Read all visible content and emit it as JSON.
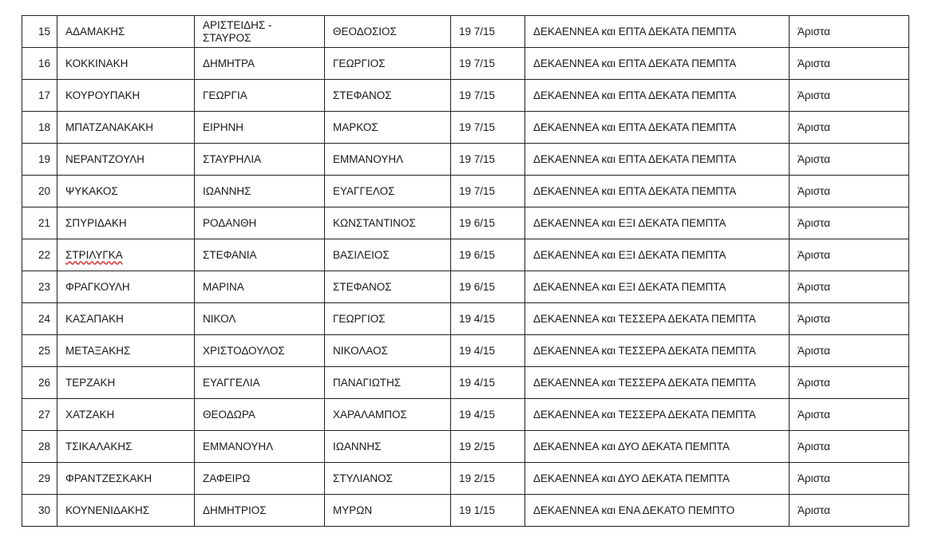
{
  "table": {
    "rows": [
      {
        "no": "15",
        "surname": "ΑΔΑΜΑΚΗΣ",
        "name": "ΑΡΙΣΤΕΙΔΗΣ - ΣΤΑΥΡΟΣ",
        "father": "ΘΕΟΔΟΣΙΟΣ",
        "grade": "19 7/15",
        "grade_words": "ΔΕΚΑΕΝΝΕΑ και ΕΠΤΑ ΔΕΚΑΤΑ ΠΕΜΠΤΑ",
        "mark": "Άριστα"
      },
      {
        "no": "16",
        "surname": "ΚΟΚΚΙΝΑΚΗ",
        "name": "ΔΗΜΗΤΡΑ",
        "father": "ΓΕΩΡΓΙΟΣ",
        "grade": "19 7/15",
        "grade_words": "ΔΕΚΑΕΝΝΕΑ και ΕΠΤΑ ΔΕΚΑΤΑ ΠΕΜΠΤΑ",
        "mark": "Άριστα"
      },
      {
        "no": "17",
        "surname": "ΚΟΥΡΟΥΠΑΚΗ",
        "name": "ΓΕΩΡΓΙΑ",
        "father": "ΣΤΕΦΑΝΟΣ",
        "grade": "19 7/15",
        "grade_words": "ΔΕΚΑΕΝΝΕΑ και ΕΠΤΑ ΔΕΚΑΤΑ ΠΕΜΠΤΑ",
        "mark": "Άριστα"
      },
      {
        "no": "18",
        "surname": "ΜΠΑΤΖΑΝΑΚΑΚΗ",
        "name": "ΕΙΡΗΝΗ",
        "father": "ΜΑΡΚΟΣ",
        "grade": "19 7/15",
        "grade_words": "ΔΕΚΑΕΝΝΕΑ και ΕΠΤΑ ΔΕΚΑΤΑ ΠΕΜΠΤΑ",
        "mark": "Άριστα"
      },
      {
        "no": "19",
        "surname": "ΝΕΡΑΝΤΖΟΥΛΗ",
        "name": "ΣΤΑΥΡΗΛΙΑ",
        "father": "ΕΜΜΑΝΟΥΗΛ",
        "grade": "19 7/15",
        "grade_words": "ΔΕΚΑΕΝΝΕΑ και ΕΠΤΑ ΔΕΚΑΤΑ ΠΕΜΠΤΑ",
        "mark": "Άριστα"
      },
      {
        "no": "20",
        "surname": "ΨΥΚΑΚΟΣ",
        "name": "ΙΩΑΝΝΗΣ",
        "father": "ΕΥΑΓΓΕΛΟΣ",
        "grade": "19 7/15",
        "grade_words": "ΔΕΚΑΕΝΝΕΑ και ΕΠΤΑ ΔΕΚΑΤΑ ΠΕΜΠΤΑ",
        "mark": "Άριστα"
      },
      {
        "no": "21",
        "surname": "ΣΠΥΡΙΔΑΚΗ",
        "name": "ΡΟΔΑΝΘΗ",
        "father": "ΚΩΝΣΤΑΝΤΙΝΟΣ",
        "grade": "19 6/15",
        "grade_words": "ΔΕΚΑΕΝΝΕΑ και ΕΞΙ ΔΕΚΑΤΑ ΠΕΜΠΤΑ",
        "mark": "Άριστα"
      },
      {
        "no": "22",
        "surname": "ΣΤΡΙΛΥΓΚΑ",
        "name": "ΣΤΕΦΑΝΙΑ",
        "father": "ΒΑΣΙΛΕΙΟΣ",
        "grade": "19 6/15",
        "grade_words": "ΔΕΚΑΕΝΝΕΑ και ΕΞΙ ΔΕΚΑΤΑ ΠΕΜΠΤΑ",
        "mark": "Άριστα",
        "spell": true
      },
      {
        "no": "23",
        "surname": "ΦΡΑΓΚΟΥΛΗ",
        "name": "ΜΑΡΙΝΑ",
        "father": "ΣΤΕΦΑΝΟΣ",
        "grade": "19 6/15",
        "grade_words": "ΔΕΚΑΕΝΝΕΑ και ΕΞΙ ΔΕΚΑΤΑ ΠΕΜΠΤΑ",
        "mark": "Άριστα"
      },
      {
        "no": "24",
        "surname": "ΚΑΣΑΠΑΚΗ",
        "name": "ΝΙΚΟΛ",
        "father": "ΓΕΩΡΓΙΟΣ",
        "grade": "19 4/15",
        "grade_words": "ΔΕΚΑΕΝΝΕΑ και ΤΕΣΣΕΡΑ ΔΕΚΑΤΑ ΠΕΜΠΤΑ",
        "mark": "Άριστα"
      },
      {
        "no": "25",
        "surname": "ΜΕΤΑΞΑΚΗΣ",
        "name": "ΧΡΙΣΤΟΔΟΥΛΟΣ",
        "father": "ΝΙΚΟΛΑΟΣ",
        "grade": "19 4/15",
        "grade_words": "ΔΕΚΑΕΝΝΕΑ και ΤΕΣΣΕΡΑ ΔΕΚΑΤΑ ΠΕΜΠΤΑ",
        "mark": "Άριστα"
      },
      {
        "no": "26",
        "surname": "ΤΕΡΖΑΚΗ",
        "name": "ΕΥΑΓΓΕΛΙΑ",
        "father": "ΠΑΝΑΓΙΩΤΗΣ",
        "grade": "19 4/15",
        "grade_words": "ΔΕΚΑΕΝΝΕΑ και ΤΕΣΣΕΡΑ ΔΕΚΑΤΑ ΠΕΜΠΤΑ",
        "mark": "Άριστα"
      },
      {
        "no": "27",
        "surname": "ΧΑΤΖΑΚΗ",
        "name": "ΘΕΟΔΩΡΑ",
        "father": "ΧΑΡΑΛΑΜΠΟΣ",
        "grade": "19 4/15",
        "grade_words": "ΔΕΚΑΕΝΝΕΑ και ΤΕΣΣΕΡΑ ΔΕΚΑΤΑ ΠΕΜΠΤΑ",
        "mark": "Άριστα"
      },
      {
        "no": "28",
        "surname": "ΤΣΙΚΑΛΑΚΗΣ",
        "name": "ΕΜΜΑΝΟΥΗΛ",
        "father": "ΙΩΑΝΝΗΣ",
        "grade": "19 2/15",
        "grade_words": "ΔΕΚΑΕΝΝΕΑ και ΔΥΟ ΔΕΚΑΤΑ ΠΕΜΠΤΑ",
        "mark": "Άριστα"
      },
      {
        "no": "29",
        "surname": "ΦΡΑΝΤΖΕΣΚΑΚΗ",
        "name": "ΖΑΦΕΙΡΩ",
        "father": "ΣΤΥΛΙΑΝΟΣ",
        "grade": "19 2/15",
        "grade_words": "ΔΕΚΑΕΝΝΕΑ και ΔΥΟ ΔΕΚΑΤΑ ΠΕΜΠΤΑ",
        "mark": "Άριστα"
      },
      {
        "no": "30",
        "surname": "ΚΟΥΝΕΝΙΔΑΚΗΣ",
        "name": "ΔΗΜΗΤΡΙΟΣ",
        "father": "ΜΥΡΩΝ",
        "grade": "19 1/15",
        "grade_words": "ΔΕΚΑΕΝΝΕΑ και ΕΝΑ ΔΕΚΑΤΟ ΠΕΜΠΤΟ",
        "mark": "Άριστα"
      }
    ]
  }
}
